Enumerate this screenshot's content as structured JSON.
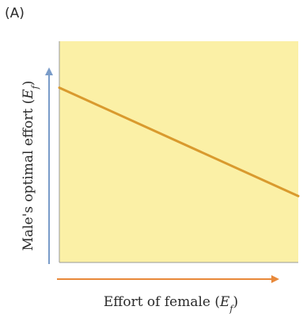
{
  "panel_label": "(A)",
  "colors": {
    "plot_background": "#fbf0a6",
    "line": "#d99a2e",
    "y_axis_arrow": "#7a9cc9",
    "x_axis_arrow": "#e8893a",
    "axis_frame": "#9a9a9a",
    "text": "#2a2a2a"
  },
  "chart_data": {
    "type": "line",
    "title": "",
    "xlabel": {
      "prefix": "Effort of female (",
      "var": "E",
      "sub": "f",
      "suffix": ")"
    },
    "ylabel": {
      "prefix": "Male's optimal effort (",
      "var": "E",
      "sub": "f",
      "suffix": ")"
    },
    "xlim": [
      0,
      1
    ],
    "ylim": [
      0,
      1
    ],
    "grid": false,
    "legend": "none",
    "ticks": "none",
    "series": [
      {
        "x": [
          0,
          1
        ],
        "y": [
          0.79,
          0.3
        ]
      }
    ]
  }
}
